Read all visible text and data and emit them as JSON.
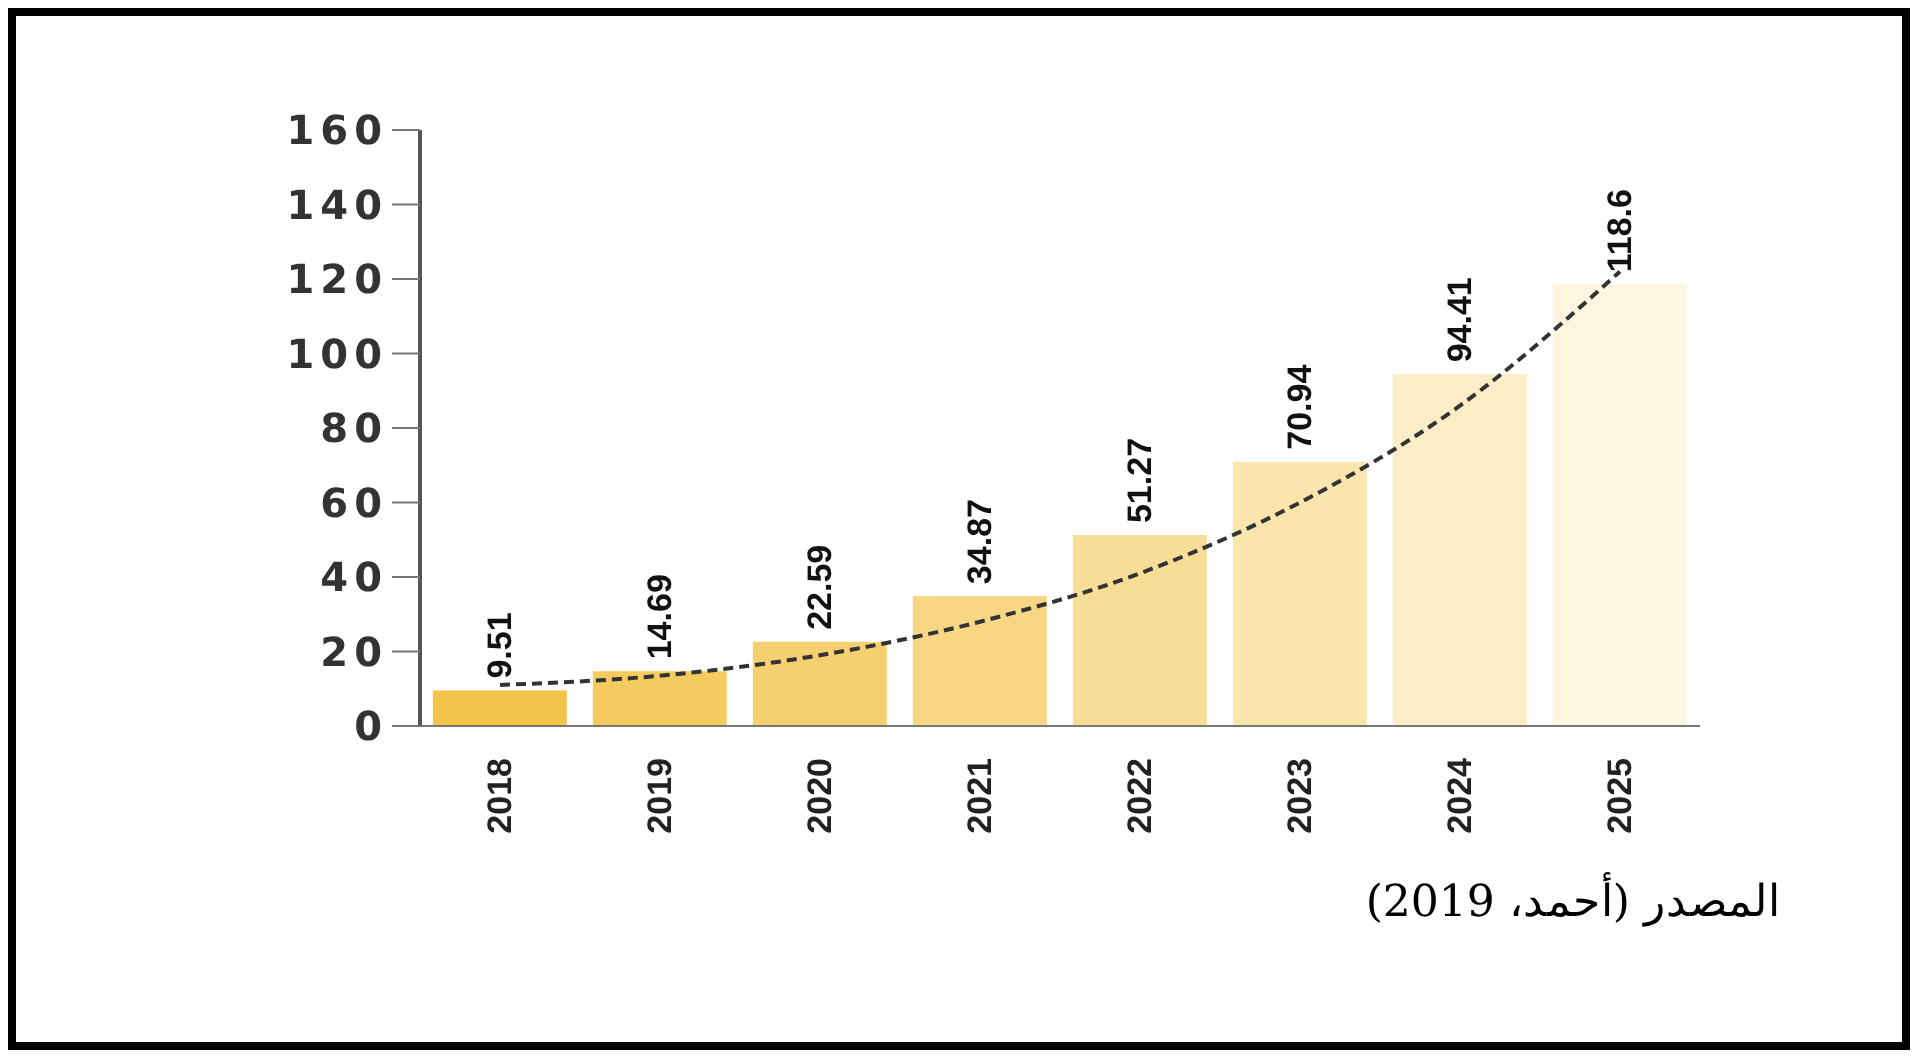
{
  "chart_data": {
    "type": "bar",
    "categories": [
      "2018",
      "2019",
      "2020",
      "2021",
      "2022",
      "2023",
      "2024",
      "2025"
    ],
    "series": [
      {
        "colors": [
          "#f3c44a",
          "#f5ca5e",
          "#f6d070",
          "#f7d783",
          "#f8dd96",
          "#fae5ad",
          "#fcedc6",
          "#fdf5e0"
        ],
        "values": [
          9.51,
          14.69,
          22.59,
          34.87,
          51.27,
          70.94,
          94.41,
          118.6
        ],
        "value_labels": [
          "9.51",
          "14.69",
          "22.59",
          "34.87",
          "51.27",
          "70.94",
          "94.41",
          "118.6"
        ]
      },
      {
        "type": "line",
        "color": "#333333",
        "line_style": "dashed",
        "values": [
          11,
          13.5,
          19,
          28,
          41,
          60,
          86,
          122
        ]
      }
    ],
    "ylim": [
      0,
      160
    ],
    "yticks": [
      0,
      20,
      40,
      60,
      80,
      100,
      120,
      140,
      160
    ],
    "grid": false,
    "legend": false,
    "marker": "none",
    "annotations": [
      "المصدر (أحمد، 2019)"
    ]
  }
}
